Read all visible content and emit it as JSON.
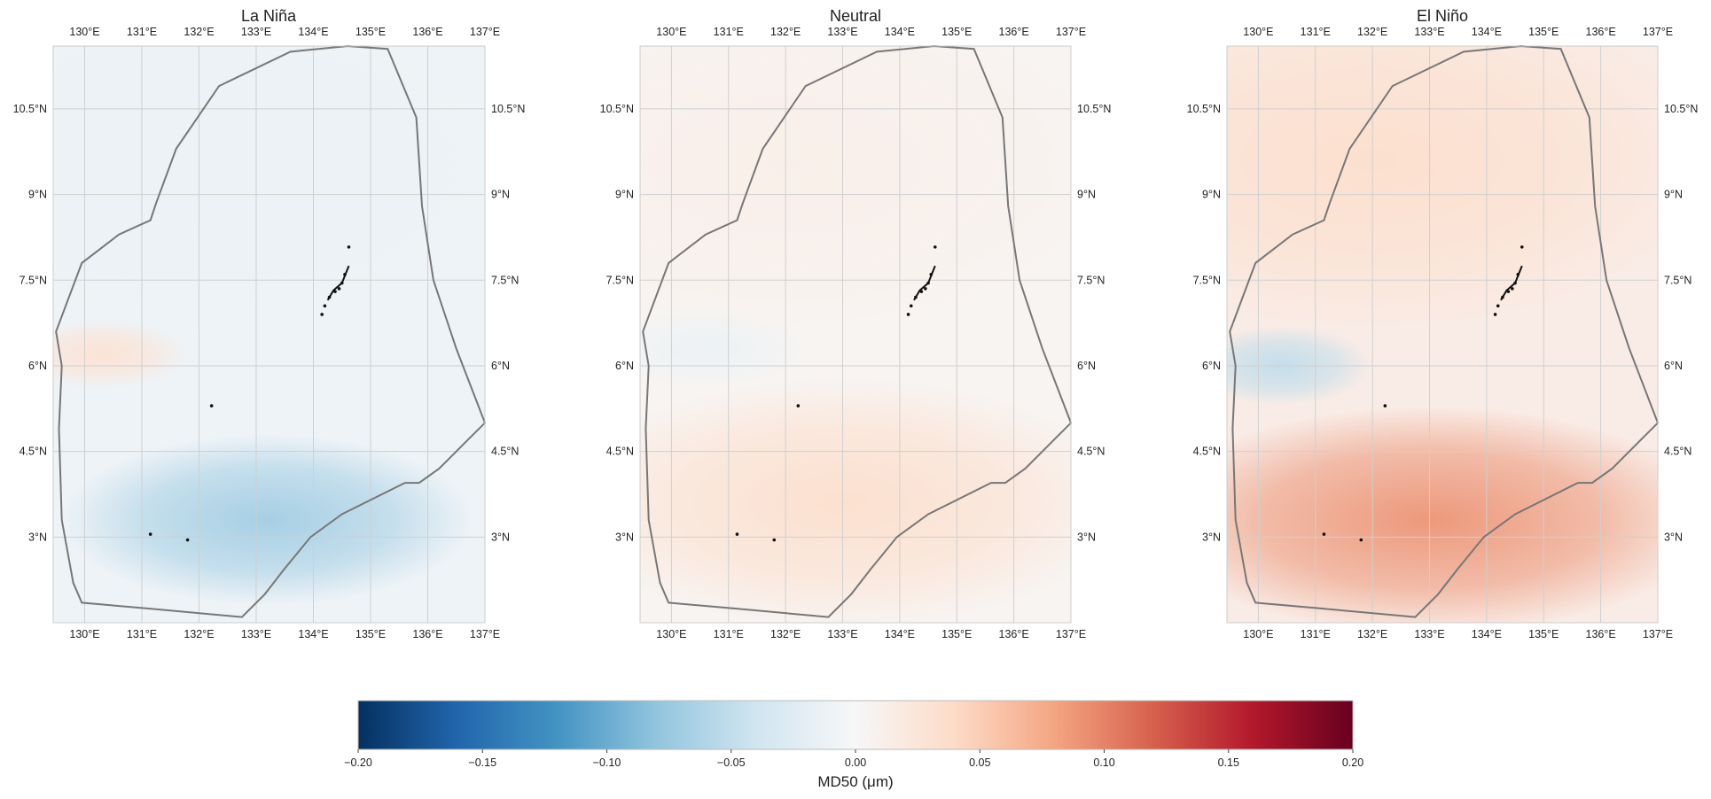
{
  "figure": {
    "colorbar": {
      "label": "MD50 (μm)",
      "vmin": -0.2,
      "vmax": 0.2,
      "ticks": [
        "−0.20",
        "−0.15",
        "−0.10",
        "−0.05",
        "0.00",
        "0.05",
        "0.10",
        "0.15",
        "0.20"
      ],
      "colors": [
        "#053061",
        "#2166ac",
        "#4393c3",
        "#92c5de",
        "#d1e5f0",
        "#f7f7f7",
        "#fddbc7",
        "#f4a582",
        "#d6604d",
        "#b2182b",
        "#67001f"
      ]
    },
    "extent": {
      "lon": [
        129.45,
        137.0
      ],
      "lat": [
        1.5,
        11.6
      ]
    },
    "lon_ticks": [
      "130°E",
      "131°E",
      "132°E",
      "133°E",
      "134°E",
      "135°E",
      "136°E",
      "137°E"
    ],
    "lon_values": [
      130,
      131,
      132,
      133,
      134,
      135,
      136,
      137
    ],
    "lat_ticks": [
      "3°N",
      "4.5°N",
      "6°N",
      "7.5°N",
      "9°N",
      "10.5°N"
    ],
    "lat_values": [
      3,
      4.5,
      6,
      7.5,
      9,
      10.5
    ],
    "eez_boundary": [
      [
        131.1,
        1.75
      ],
      [
        129.95,
        1.85
      ],
      [
        129.8,
        2.2
      ],
      [
        129.6,
        3.3
      ],
      [
        129.55,
        4.9
      ],
      [
        129.6,
        6.0
      ],
      [
        129.5,
        6.6
      ],
      [
        129.95,
        7.8
      ],
      [
        130.6,
        8.3
      ],
      [
        131.15,
        8.55
      ],
      [
        131.25,
        8.85
      ],
      [
        131.6,
        9.8
      ],
      [
        132.35,
        10.9
      ],
      [
        133.6,
        11.5
      ],
      [
        134.6,
        11.6
      ],
      [
        135.3,
        11.55
      ],
      [
        135.8,
        10.35
      ],
      [
        135.9,
        8.8
      ],
      [
        136.1,
        7.5
      ],
      [
        136.5,
        6.3
      ],
      [
        137.0,
        5.0
      ],
      [
        136.7,
        4.7
      ],
      [
        136.2,
        4.2
      ],
      [
        135.85,
        3.95
      ],
      [
        135.6,
        3.95
      ],
      [
        134.5,
        3.4
      ],
      [
        133.95,
        3.0
      ],
      [
        133.5,
        2.45
      ],
      [
        133.15,
        2.0
      ],
      [
        132.75,
        1.6
      ],
      [
        131.1,
        1.75
      ]
    ],
    "maps": [
      {
        "title": "La Niña",
        "anomaly_fields": [
          {
            "lon": 133.2,
            "lat": 3.3,
            "rlon": 3.6,
            "rlat": 1.5,
            "value": -0.07
          },
          {
            "lon": 130.3,
            "lat": 6.2,
            "rlon": 1.5,
            "rlat": 0.6,
            "value": 0.03
          },
          {
            "lon": 132.0,
            "lat": 9.5,
            "rlon": 6,
            "rlat": 3,
            "value": -0.012
          }
        ]
      },
      {
        "title": "Neutral",
        "anomaly_fields": [
          {
            "lon": 133.0,
            "lat": 3.6,
            "rlon": 5,
            "rlat": 2.2,
            "value": 0.035
          },
          {
            "lon": 130.6,
            "lat": 6.3,
            "rlon": 1.8,
            "rlat": 0.7,
            "value": -0.012
          },
          {
            "lon": 132.0,
            "lat": 9.5,
            "rlon": 6,
            "rlat": 3,
            "value": 0.012
          }
        ]
      },
      {
        "title": "El Niño",
        "anomaly_fields": [
          {
            "lon": 133.0,
            "lat": 3.3,
            "rlon": 5,
            "rlat": 2,
            "value": 0.09
          },
          {
            "lon": 130.4,
            "lat": 6.0,
            "rlon": 1.6,
            "rlat": 0.7,
            "value": -0.05
          },
          {
            "lon": 132.0,
            "lat": 9.6,
            "rlon": 6,
            "rlat": 3,
            "value": 0.035
          }
        ]
      }
    ]
  }
}
